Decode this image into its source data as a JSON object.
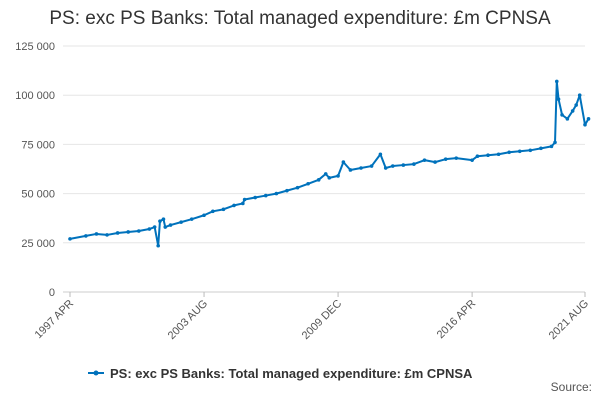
{
  "title": "PS: exc PS Banks: Total managed expenditure: £m CPNSA",
  "source_label": "Source:",
  "chart_data": {
    "type": "line",
    "title": "PS: exc PS Banks: Total managed expenditure: £m CPNSA",
    "xlabel": "",
    "ylabel": "",
    "ylim": [
      0,
      125000
    ],
    "y_ticks": [
      0,
      25000,
      50000,
      75000,
      100000,
      125000
    ],
    "y_tick_labels": [
      "0",
      "25 000",
      "50 000",
      "75 000",
      "100 000",
      "125 000"
    ],
    "x_ticks": [
      "1997-04",
      "2003-08",
      "2009-12",
      "2016-04",
      "2021-08"
    ],
    "x_tick_labels": [
      "1997 APR",
      "2003 AUG",
      "2009 DEC",
      "2016 APR",
      "2021 AUG"
    ],
    "grid": true,
    "legend_position": "bottom",
    "color": "#0072bc",
    "series": [
      {
        "name": "PS: exc PS Banks: Total managed expenditure: £m CPNSA",
        "x": [
          "1997-04",
          "1998-01",
          "1998-07",
          "1999-01",
          "1999-07",
          "2000-01",
          "2000-07",
          "2001-01",
          "2001-04",
          "2001-06",
          "2001-07",
          "2001-09",
          "2001-10",
          "2002-01",
          "2002-07",
          "2003-01",
          "2003-08",
          "2004-01",
          "2004-07",
          "2005-01",
          "2005-06",
          "2005-07",
          "2006-01",
          "2006-07",
          "2007-01",
          "2007-07",
          "2008-01",
          "2008-07",
          "2009-01",
          "2009-05",
          "2009-07",
          "2009-12",
          "2010-03",
          "2010-07",
          "2011-01",
          "2011-07",
          "2011-12",
          "2012-03",
          "2012-07",
          "2013-01",
          "2013-07",
          "2014-01",
          "2014-07",
          "2015-01",
          "2015-07",
          "2016-04",
          "2016-07",
          "2017-01",
          "2017-07",
          "2018-01",
          "2018-07",
          "2019-01",
          "2019-07",
          "2020-01",
          "2020-03",
          "2020-04",
          "2020-05",
          "2020-07",
          "2020-10",
          "2021-01",
          "2021-03",
          "2021-05",
          "2021-08",
          "2021-10"
        ],
        "values": [
          27000,
          28500,
          29500,
          29000,
          30000,
          30500,
          31000,
          32000,
          33000,
          23500,
          36000,
          37000,
          33000,
          34000,
          35500,
          37000,
          39000,
          41000,
          42000,
          44000,
          45000,
          47000,
          48000,
          49000,
          50000,
          51500,
          53000,
          55000,
          57000,
          60000,
          58000,
          59000,
          66000,
          62000,
          63000,
          64000,
          70000,
          63000,
          64000,
          64500,
          65000,
          67000,
          66000,
          67500,
          68000,
          67000,
          69000,
          69500,
          70000,
          71000,
          71500,
          72000,
          73000,
          74000,
          76000,
          107000,
          98000,
          90000,
          88000,
          92000,
          95000,
          100000,
          85000,
          88000
        ]
      }
    ]
  }
}
